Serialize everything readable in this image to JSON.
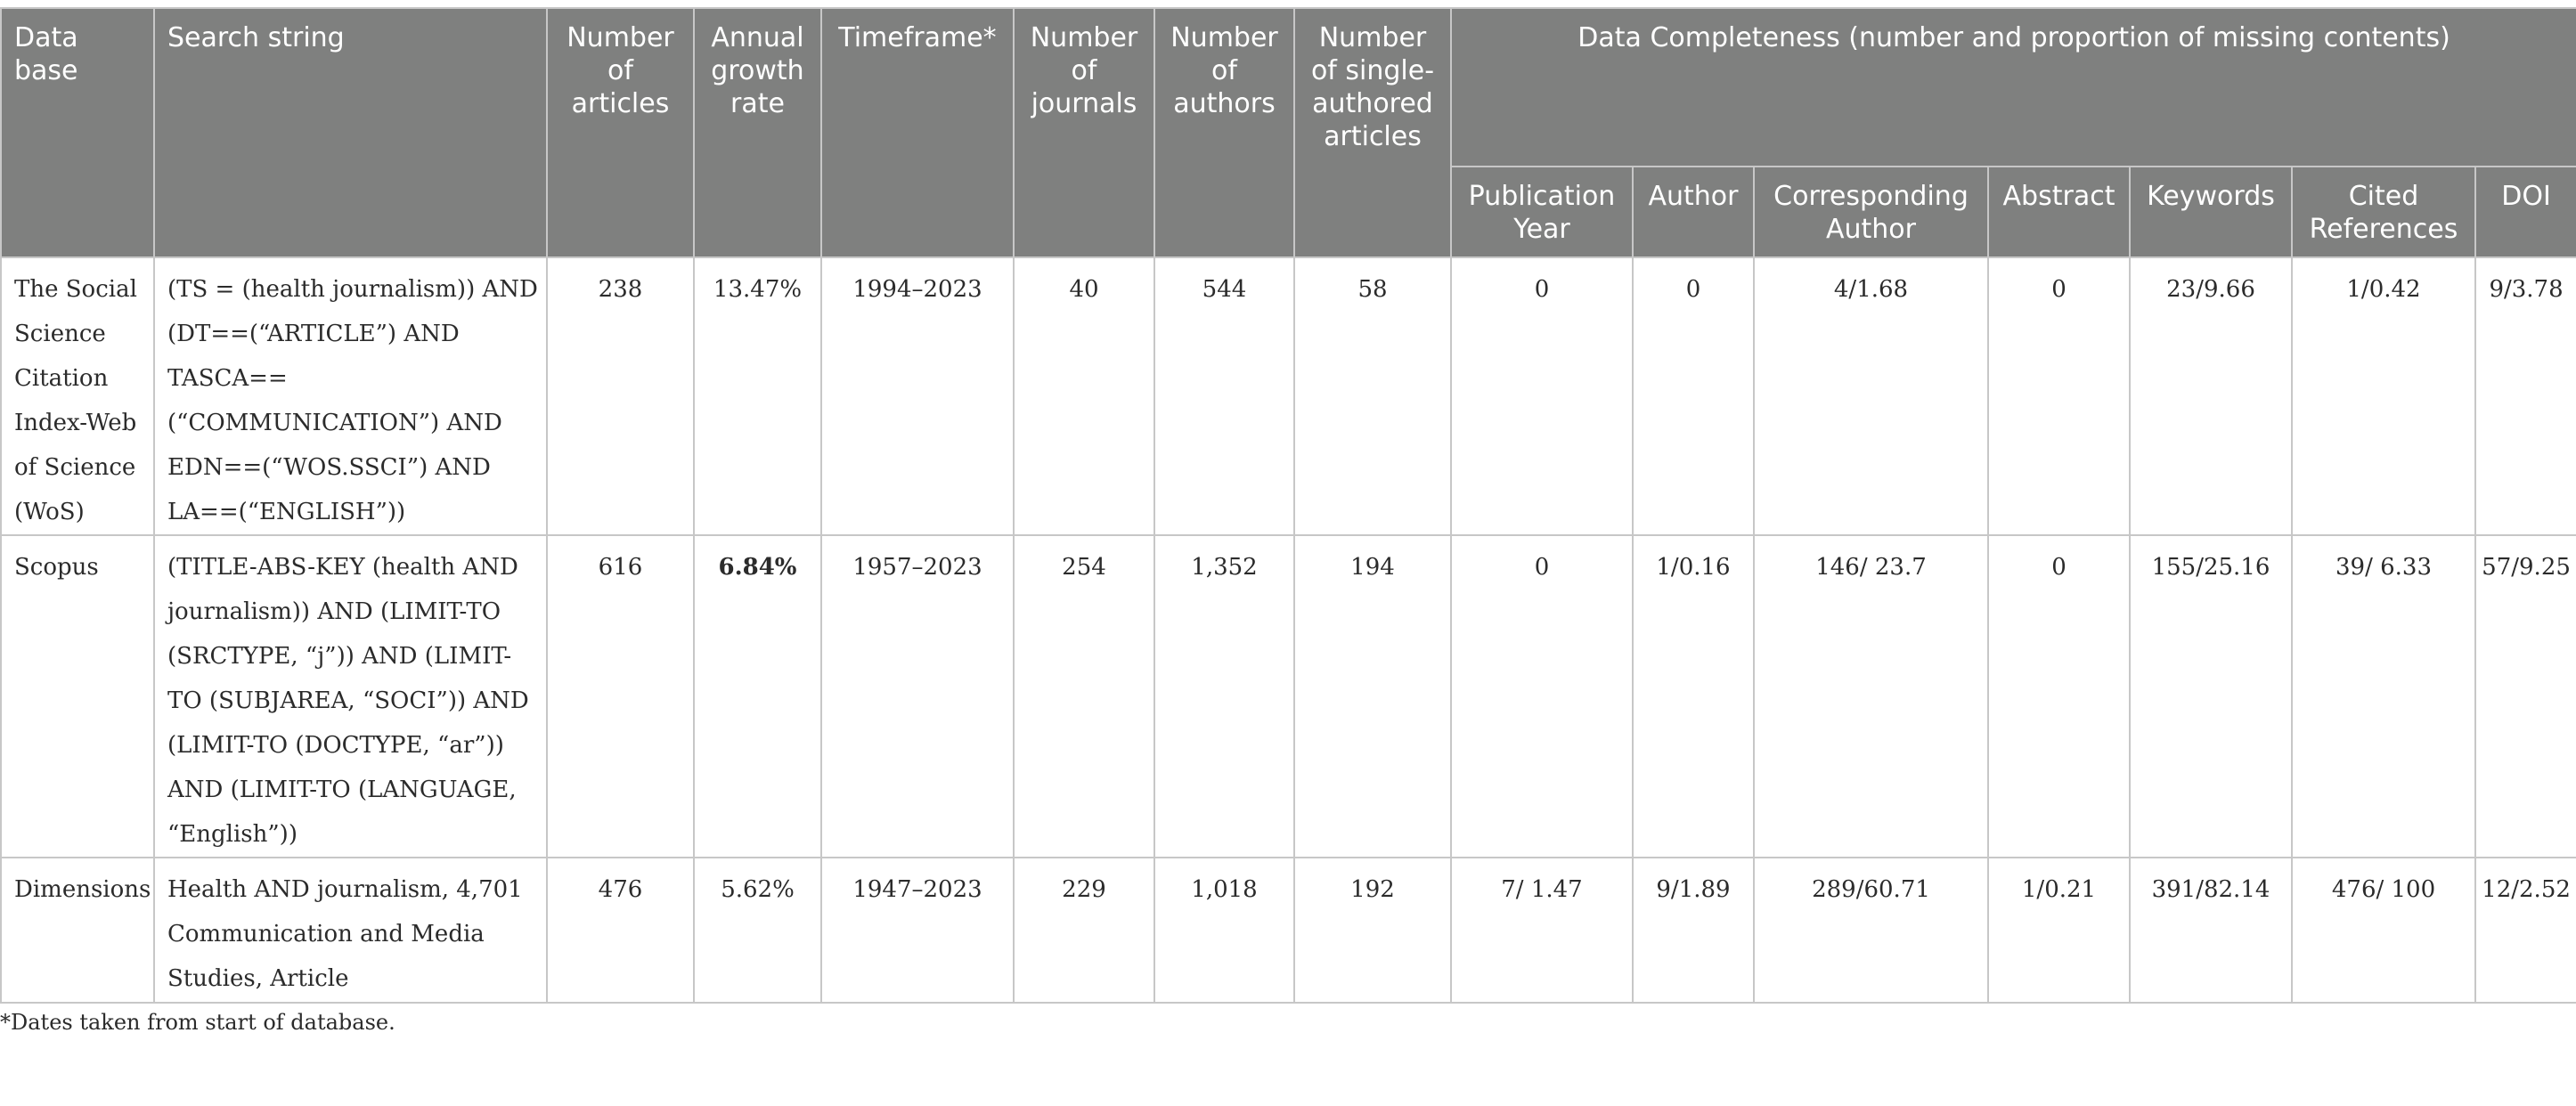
{
  "table": {
    "headers": {
      "database": "Data base",
      "search_string": "Search string",
      "num_articles": "Number of articles",
      "growth_rate": "Annual growth rate",
      "timeframe": "Timeframe*",
      "num_journals": "Number of journals",
      "num_authors": "Number of authors",
      "single_authored": "Number of single-authored articles",
      "completeness": "Data Completeness (number and proportion of missing contents)",
      "pub_year": "Publication Year",
      "author": "Author",
      "corresponding_author": "Corresponding Author",
      "abstract": "Abstract",
      "keywords": "Keywords",
      "cited_refs": "Cited References",
      "doi": "DOI"
    },
    "rows": [
      {
        "database": "The Social Science Citation Index-Web of Science (WoS)",
        "search_string": "(TS = (health journalism)) AND (DT==(“ARTICLE”) AND TASCA==(“COMMUNICATION”) AND EDN==(“WOS.SSCI”) AND LA==(“ENGLISH”))",
        "num_articles": "238",
        "growth_rate": "13.47%",
        "timeframe": "1994–2023",
        "num_journals": "40",
        "num_authors": "544",
        "single_authored": "58",
        "pub_year": "0",
        "author": "0",
        "corresponding_author": "4/1.68",
        "abstract": "0",
        "keywords": "23/9.66",
        "cited_refs": "1/0.42",
        "doi": "9/3.78"
      },
      {
        "database": "Scopus",
        "search_string": "(TITLE-ABS-KEY (health AND journalism)) AND (LIMIT-TO (SRCTYPE, “j”)) AND (LIMIT-TO (SUBJAREA, “SOCI”)) AND (LIMIT-TO (DOCTYPE, “ar”)) AND (LIMIT-TO (LANGUAGE, “English”))",
        "num_articles": "616",
        "growth_rate": "6.84%",
        "timeframe": "1957–2023",
        "num_journals": "254",
        "num_authors": "1,352",
        "single_authored": "194",
        "pub_year": "0",
        "author": "1/0.16",
        "corresponding_author": "146/ 23.7",
        "abstract": "0",
        "keywords": "155/25.16",
        "cited_refs": "39/ 6.33",
        "doi": "57/9.25"
      },
      {
        "database": "Dimensions",
        "search_string": "Health AND journalism, 4,701 Communication and Media Studies, Article",
        "num_articles": "476",
        "growth_rate": "5.62%",
        "timeframe": "1947–2023",
        "num_journals": "229",
        "num_authors": "1,018",
        "single_authored": "192",
        "pub_year": "7/ 1.47",
        "author": "9/1.89",
        "corresponding_author": "289/60.71",
        "abstract": "1/0.21",
        "keywords": "391/82.14",
        "cited_refs": "476/ 100",
        "doi": "12/2.52"
      }
    ]
  },
  "footnote": "*Dates taken from start of database."
}
